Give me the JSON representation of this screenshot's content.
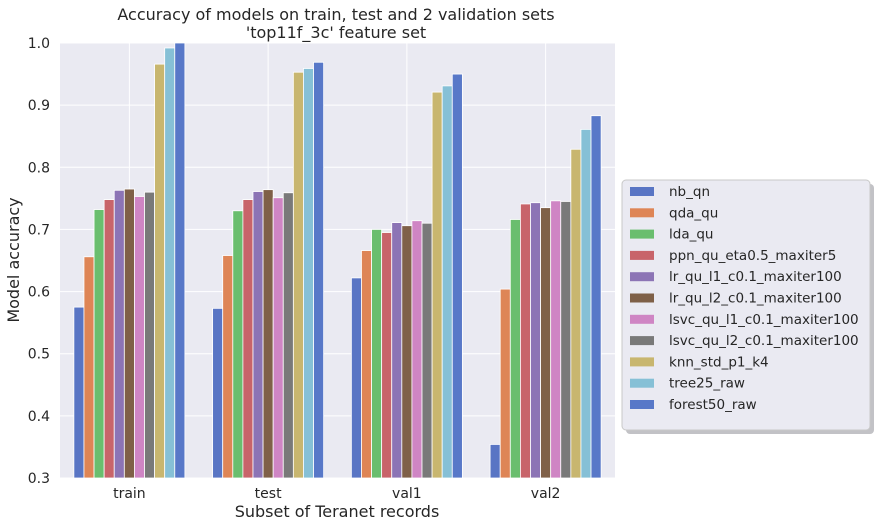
{
  "chart_data": {
    "type": "bar",
    "title": "Accuracy of models on train, test and 2 validation sets",
    "subtitle": "'top11f_3c' feature set",
    "xlabel": "Subset of Teranet records",
    "ylabel": "Model accuracy",
    "ylim": [
      0.3,
      1.0
    ],
    "yticks": [
      "0.3",
      "0.4",
      "0.5",
      "0.6",
      "0.7",
      "0.8",
      "0.9",
      "1.0"
    ],
    "grid": true,
    "legend_position": "right",
    "categories": [
      "train",
      "test",
      "val1",
      "val2"
    ],
    "series": [
      {
        "name": "nb_qn",
        "color": "#5975c4",
        "values": [
          0.575,
          0.573,
          0.622,
          0.354
        ]
      },
      {
        "name": "qda_qu",
        "color": "#de8556",
        "values": [
          0.656,
          0.658,
          0.666,
          0.604
        ]
      },
      {
        "name": "lda_qu",
        "color": "#6abe6e",
        "values": [
          0.732,
          0.73,
          0.7,
          0.716
        ]
      },
      {
        "name": "ppn_qu_eta0.5_maxiter5",
        "color": "#c8646a",
        "values": [
          0.748,
          0.748,
          0.695,
          0.741
        ]
      },
      {
        "name": "lr_qu_l1_c0.1_maxiter100",
        "color": "#8c74b5",
        "values": [
          0.763,
          0.761,
          0.711,
          0.743
        ]
      },
      {
        "name": "lr_qu_l2_c0.1_maxiter100",
        "color": "#7f6048",
        "values": [
          0.765,
          0.764,
          0.706,
          0.735
        ]
      },
      {
        "name": "lsvc_qu_l1_c0.1_maxiter100",
        "color": "#cf85c4",
        "values": [
          0.753,
          0.751,
          0.714,
          0.746
        ]
      },
      {
        "name": "lsvc_qu_l2_c0.1_maxiter100",
        "color": "#797979",
        "values": [
          0.76,
          0.759,
          0.71,
          0.745
        ]
      },
      {
        "name": "knn_std_p1_k4",
        "color": "#c8b66f",
        "values": [
          0.966,
          0.953,
          0.921,
          0.829
        ]
      },
      {
        "name": "tree25_raw",
        "color": "#86c0d6",
        "values": [
          0.992,
          0.959,
          0.931,
          0.861
        ]
      },
      {
        "name": "forest50_raw",
        "color": "#5878c8",
        "values": [
          1.0,
          0.969,
          0.95,
          0.883
        ]
      }
    ]
  }
}
